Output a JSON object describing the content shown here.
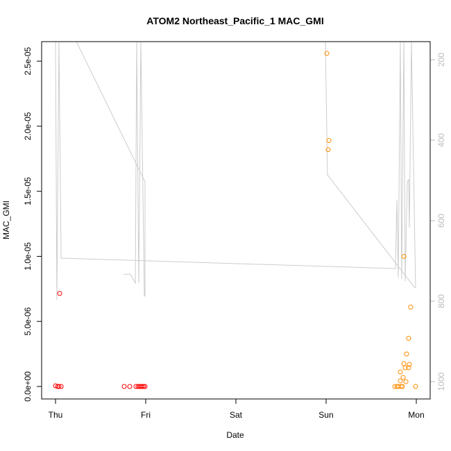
{
  "chart_data": {
    "type": "scatter",
    "title": "ATOM2 Northeast_Pacific_1 MAC_GMI",
    "xlabel": "Date",
    "ylabel": "MAC_GMI",
    "x_units": "days since Thu 00:00",
    "xlim": [
      -0.154,
      4.154
    ],
    "ylim": [
      -9.6e-07,
      2.65e-05
    ],
    "x_ticks": [
      {
        "value": 0,
        "label": "Thu"
      },
      {
        "value": 1,
        "label": "Fri"
      },
      {
        "value": 2,
        "label": "Sat"
      },
      {
        "value": 3,
        "label": "Sun"
      },
      {
        "value": 4,
        "label": "Mon"
      }
    ],
    "y_ticks": [
      {
        "value": 0,
        "label": "0.0e+00"
      },
      {
        "value": 5e-06,
        "label": "5.0e-06"
      },
      {
        "value": 1e-05,
        "label": "1.0e-05"
      },
      {
        "value": 1.5e-05,
        "label": "1.5e-05"
      },
      {
        "value": 2e-05,
        "label": "2.0e-05"
      },
      {
        "value": 2.5e-05,
        "label": "2.5e-05"
      }
    ],
    "right_axis": {
      "lim": [
        155,
        1043
      ],
      "inverted": true,
      "ticks": [
        {
          "value": 200,
          "label": "200"
        },
        {
          "value": 400,
          "label": "400"
        },
        {
          "value": 600,
          "label": "600"
        },
        {
          "value": 800,
          "label": "800"
        },
        {
          "value": 1000,
          "label": "1000"
        }
      ],
      "color": "#bbbbbb"
    },
    "series": [
      {
        "name": "red",
        "color": "#ff0000",
        "points": [
          [
            0,
            5e-08
          ],
          [
            0.023,
            0
          ],
          [
            0.038,
            0
          ],
          [
            0.062,
            0
          ],
          [
            0.046,
            7.15e-06
          ],
          [
            0.762,
            0
          ],
          [
            0.823,
            0
          ],
          [
            0.892,
            0
          ],
          [
            0.915,
            0
          ],
          [
            0.931,
            0
          ],
          [
            0.946,
            0
          ],
          [
            0.962,
            0
          ],
          [
            0.977,
            0
          ],
          [
            0.992,
            0
          ]
        ]
      },
      {
        "name": "orange",
        "color": "#ff8c00",
        "points": [
          [
            3.008,
            2.56e-05
          ],
          [
            3.031,
            1.89e-05
          ],
          [
            3.023,
            1.82e-05
          ],
          [
            3.862,
            1e-05
          ],
          [
            3.938,
            6.1e-06
          ],
          [
            3.915,
            3.7e-06
          ],
          [
            3.892,
            2.5e-06
          ],
          [
            3.862,
            1.76e-06
          ],
          [
            3.923,
            1.7e-06
          ],
          [
            3.877,
            1.44e-06
          ],
          [
            3.915,
            1.44e-06
          ],
          [
            3.823,
            1.12e-06
          ],
          [
            3.854,
            6.9e-07
          ],
          [
            3.823,
            4.3e-07
          ],
          [
            3.885,
            3.7e-07
          ],
          [
            3.762,
            0
          ],
          [
            3.785,
            0
          ],
          [
            3.8,
            0
          ],
          [
            3.831,
            0
          ],
          [
            3.846,
            0
          ],
          [
            3.992,
            0
          ]
        ]
      }
    ],
    "profile_line": {
      "color": "#cccccc",
      "axis": "right",
      "segments": [
        [
          [
            0,
            155
          ],
          [
            0.015,
            797
          ],
          [
            0.038,
            155
          ],
          [
            0.062,
            693
          ],
          [
            3.769,
            719
          ],
          [
            3.785,
            548
          ],
          [
            3.8,
            741
          ],
          [
            3.823,
            155
          ],
          [
            3.838,
            745
          ],
          [
            3.862,
            155
          ],
          [
            3.877,
            750
          ],
          [
            3.9,
            505
          ],
          [
            3.915,
            497
          ],
          [
            3.923,
            617
          ],
          [
            3.946,
            155
          ],
          [
            3.992,
            767
          ]
        ],
        [
          [
            2.992,
            155
          ],
          [
            3.015,
            486
          ],
          [
            3.985,
            767
          ]
        ],
        [
          [
            0.231,
            155
          ],
          [
            0.992,
            503
          ],
          [
            0.992,
            788
          ]
        ],
        [
          [
            0.754,
            733
          ],
          [
            0.831,
            733
          ],
          [
            0.885,
            755
          ],
          [
            0.9,
            155
          ],
          [
            0.923,
            755
          ],
          [
            0.946,
            155
          ],
          [
            0.985,
            788
          ]
        ]
      ]
    }
  }
}
